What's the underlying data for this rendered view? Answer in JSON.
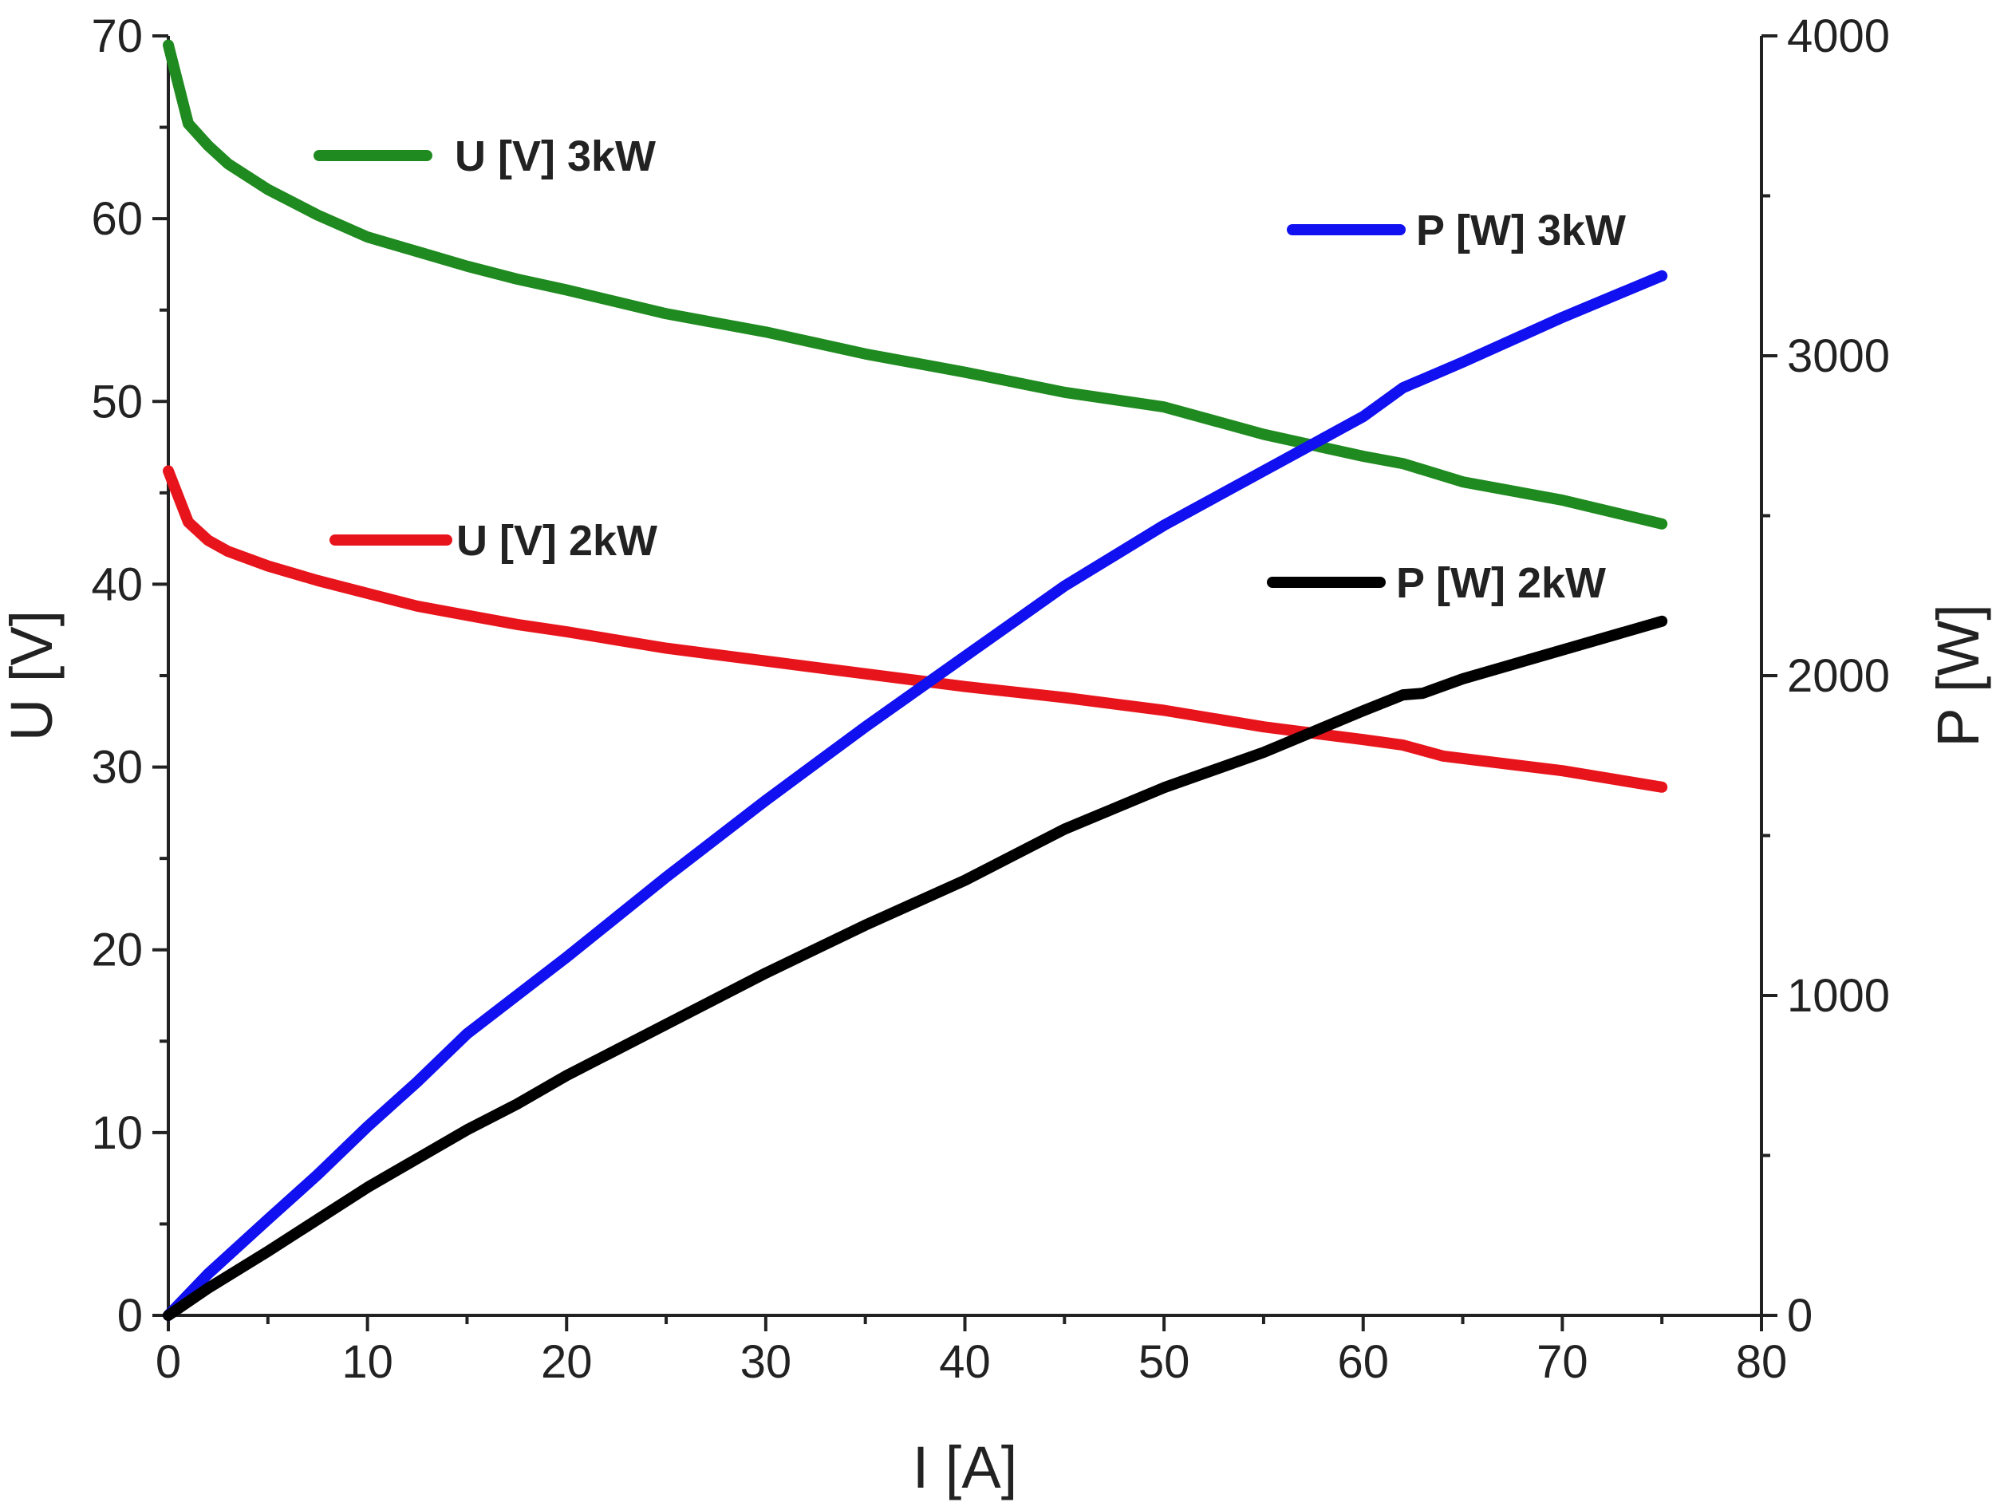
{
  "chart_data": {
    "type": "line",
    "xlabel": "I [A]",
    "ylabel": "U [V]",
    "y2label": "P [W]",
    "xlim": [
      0,
      80
    ],
    "ylim": [
      0,
      70
    ],
    "y2lim": [
      0,
      4000
    ],
    "xticks": [
      0,
      10,
      20,
      30,
      40,
      50,
      60,
      70,
      80
    ],
    "yticks": [
      0,
      10,
      20,
      30,
      40,
      50,
      60,
      70
    ],
    "y2ticks": [
      0,
      1000,
      2000,
      3000,
      4000
    ],
    "grid": false,
    "legend": "inline labels",
    "series": [
      {
        "name": "U [V] 3kW",
        "axis": "left",
        "color": "#1f8a1f",
        "x": [
          0,
          1,
          2,
          3,
          5,
          7.5,
          10,
          12.5,
          15,
          17.5,
          20,
          25,
          30,
          35,
          40,
          45,
          50,
          55,
          60,
          62,
          65,
          70,
          75
        ],
        "y": [
          69.5,
          65.2,
          64.0,
          63.0,
          61.6,
          60.2,
          59.0,
          58.2,
          57.4,
          56.7,
          56.1,
          54.8,
          53.8,
          52.6,
          51.6,
          50.5,
          49.7,
          48.2,
          47.0,
          46.6,
          45.6,
          44.6,
          43.3
        ]
      },
      {
        "name": "U [V] 2kW",
        "axis": "left",
        "color": "#e8141b",
        "x": [
          0,
          1,
          2,
          3,
          5,
          7.5,
          10,
          12.5,
          15,
          17.5,
          20,
          25,
          30,
          35,
          40,
          45,
          50,
          55,
          60,
          62,
          64,
          70,
          75
        ],
        "y": [
          46.2,
          43.4,
          42.4,
          41.8,
          41.0,
          40.2,
          39.5,
          38.8,
          38.3,
          37.8,
          37.4,
          36.5,
          35.8,
          35.1,
          34.4,
          33.8,
          33.1,
          32.2,
          31.5,
          31.2,
          30.6,
          29.8,
          28.9
        ]
      },
      {
        "name": "P [W] 3kW",
        "axis": "right",
        "color": "#1010f0",
        "x": [
          0,
          2,
          5,
          7.5,
          10,
          12.5,
          15,
          17.5,
          20,
          25,
          30,
          35,
          40,
          45,
          50,
          55,
          60,
          62,
          65,
          70,
          75
        ],
        "y": [
          0,
          130,
          300,
          440,
          590,
          730,
          880,
          1000,
          1120,
          1370,
          1610,
          1840,
          2060,
          2280,
          2470,
          2640,
          2810,
          2900,
          2980,
          3120,
          3250
        ]
      },
      {
        "name": "P [W] 2kW",
        "axis": "right",
        "color": "#000000",
        "x": [
          0,
          2,
          5,
          7.5,
          10,
          12.5,
          15,
          17.5,
          20,
          25,
          30,
          35,
          40,
          45,
          50,
          55,
          60,
          62,
          63,
          65,
          70,
          75
        ],
        "y": [
          0,
          85,
          200,
          300,
          400,
          490,
          580,
          660,
          750,
          910,
          1070,
          1220,
          1360,
          1520,
          1650,
          1760,
          1890,
          1940,
          1945,
          1990,
          2080,
          2170
        ]
      }
    ]
  }
}
